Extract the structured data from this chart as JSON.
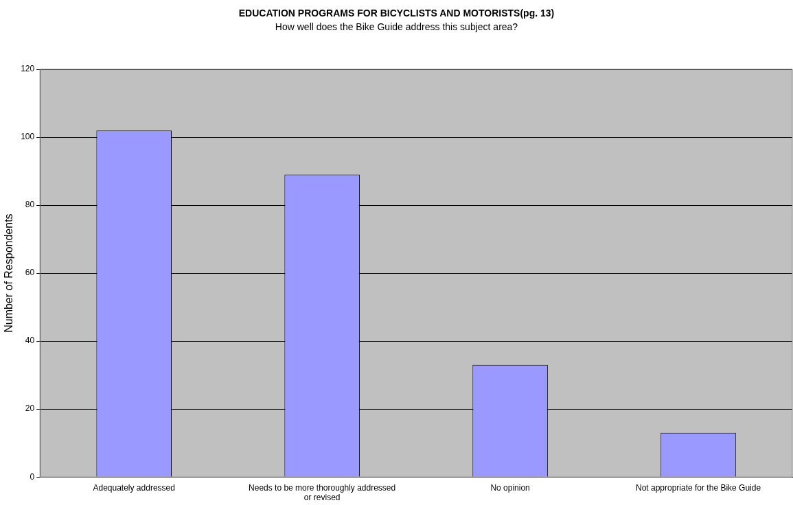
{
  "chart_data": {
    "type": "bar",
    "title": "EDUCATION PROGRAMS FOR BICYCLISTS AND MOTORISTS(pg. 13)",
    "subtitle": "How well does the Bike Guide address this subject area?",
    "ylabel": "Number of Respondents",
    "categories": [
      "Adequately addressed",
      "Needs to be more thoroughly addressed or revised",
      "No opinion",
      "Not appropriate for the Bike Guide"
    ],
    "values": [
      102,
      89,
      33,
      13
    ],
    "color": "#9999ff",
    "ylim": [
      0,
      120
    ],
    "yticks": [
      0,
      20,
      40,
      60,
      80,
      100,
      120
    ],
    "grid": "y"
  }
}
